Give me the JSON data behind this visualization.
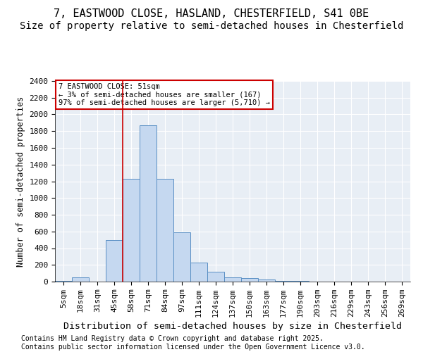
{
  "title1": "7, EASTWOOD CLOSE, HASLAND, CHESTERFIELD, S41 0BE",
  "title2": "Size of property relative to semi-detached houses in Chesterfield",
  "xlabel": "Distribution of semi-detached houses by size in Chesterfield",
  "ylabel": "Number of semi-detached properties",
  "footnote": "Contains HM Land Registry data © Crown copyright and database right 2025.\nContains public sector information licensed under the Open Government Licence v3.0.",
  "bin_labels": [
    "5sqm",
    "18sqm",
    "31sqm",
    "45sqm",
    "58sqm",
    "71sqm",
    "84sqm",
    "97sqm",
    "111sqm",
    "124sqm",
    "137sqm",
    "150sqm",
    "163sqm",
    "177sqm",
    "190sqm",
    "203sqm",
    "216sqm",
    "229sqm",
    "243sqm",
    "256sqm",
    "269sqm"
  ],
  "bar_values": [
    10,
    50,
    0,
    500,
    1230,
    1870,
    1230,
    590,
    230,
    120,
    50,
    40,
    25,
    10,
    5,
    2,
    0,
    0,
    0,
    0,
    0
  ],
  "bar_color": "#c5d8f0",
  "bar_edge_color": "#5a8fc4",
  "property_line_x": 4,
  "property_line_color": "#cc0000",
  "ylim": [
    0,
    2400
  ],
  "yticks": [
    0,
    200,
    400,
    600,
    800,
    1000,
    1200,
    1400,
    1600,
    1800,
    2000,
    2200,
    2400
  ],
  "annotation_title": "7 EASTWOOD CLOSE: 51sqm",
  "annotation_line1": "← 3% of semi-detached houses are smaller (167)",
  "annotation_line2": "97% of semi-detached houses are larger (5,710) →",
  "annotation_color": "#cc0000",
  "background_color": "#e8eef5",
  "grid_color": "#ffffff",
  "title1_fontsize": 11,
  "title2_fontsize": 10,
  "xlabel_fontsize": 9.5,
  "ylabel_fontsize": 8.5,
  "tick_fontsize": 8,
  "footnote_fontsize": 7
}
